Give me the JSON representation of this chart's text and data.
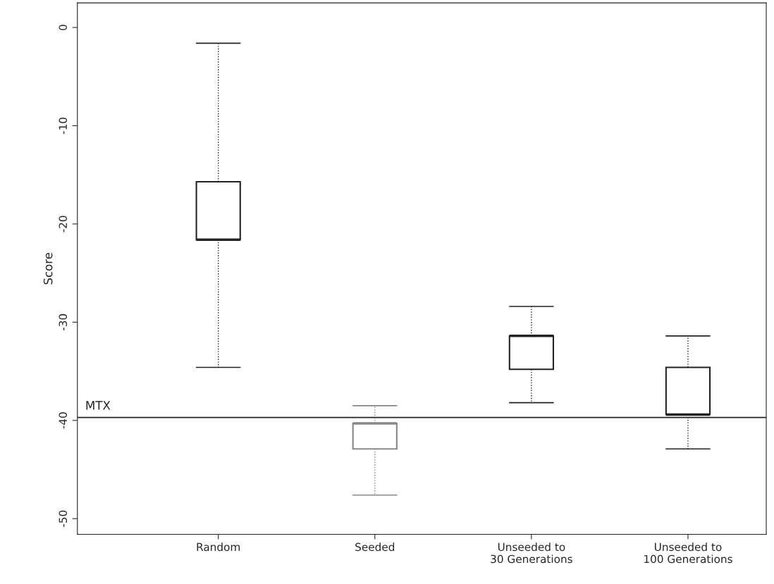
{
  "chart_data": {
    "type": "box",
    "ylabel": "Score",
    "categories": [
      "Random",
      "Seeded",
      "Unseeded to\n30 Generations",
      "Unseeded to\n100 Generations"
    ],
    "boxes": [
      {
        "low": -34.6,
        "q1": -21.6,
        "median": -21.6,
        "q3": -15.7,
        "high": -1.6
      },
      {
        "low": -47.6,
        "q1": -42.9,
        "median": -40.3,
        "q3": -40.3,
        "high": -38.5
      },
      {
        "low": -38.2,
        "q1": -34.8,
        "median": -31.4,
        "q3": -31.4,
        "high": -28.4
      },
      {
        "low": -42.9,
        "q1": -39.4,
        "median": -39.4,
        "q3": -34.6,
        "high": -31.4
      }
    ],
    "colors": [
      "#222222",
      "#888888",
      "#222222",
      "#222222"
    ],
    "ylim": [
      -51.6,
      2.5
    ],
    "yticks": [
      {
        "value": 0,
        "label": "0"
      },
      {
        "value": -10,
        "label": "-10"
      },
      {
        "value": -20,
        "label": "-20"
      },
      {
        "value": -30,
        "label": "-30"
      },
      {
        "value": -40,
        "label": "-40"
      },
      {
        "value": -50,
        "label": "-50"
      }
    ],
    "ref_lines": [
      {
        "axis": "y",
        "value": -39.7,
        "label": "MTX",
        "color": "#222222"
      }
    ],
    "grid": false
  }
}
